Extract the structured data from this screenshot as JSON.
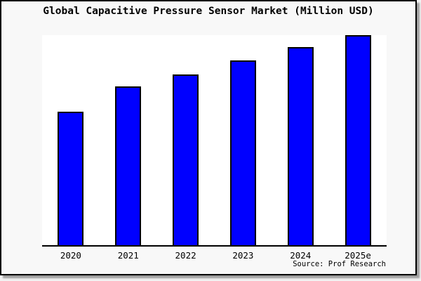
{
  "header": {
    "title": "Global Capacitive Pressure Sensor Market (Million USD)"
  },
  "footer": {
    "source": "Source: Prof Research"
  },
  "colors": {
    "bar_fill": "#0000ff",
    "bar_border": "#000000",
    "frame_background": "#f8f8f8",
    "plot_background": "#ffffff",
    "frame_border": "#000000"
  },
  "chart_data": {
    "type": "bar",
    "title": "Global Capacitive Pressure Sensor Market (Million USD)",
    "categories": [
      "2020",
      "2021",
      "2022",
      "2023",
      "2024",
      "2025e"
    ],
    "values": [
      63.5,
      75.6,
      81.4,
      87.9,
      94.2,
      100
    ],
    "value_axis_note": "y-axis unlabeled; values are relative bar heights as % of tallest bar (2025e = 100)",
    "xlabel": "",
    "ylabel": "",
    "ylim": [
      0,
      100
    ],
    "grid": "off",
    "legend": "none",
    "source": "Source: Prof Research"
  }
}
